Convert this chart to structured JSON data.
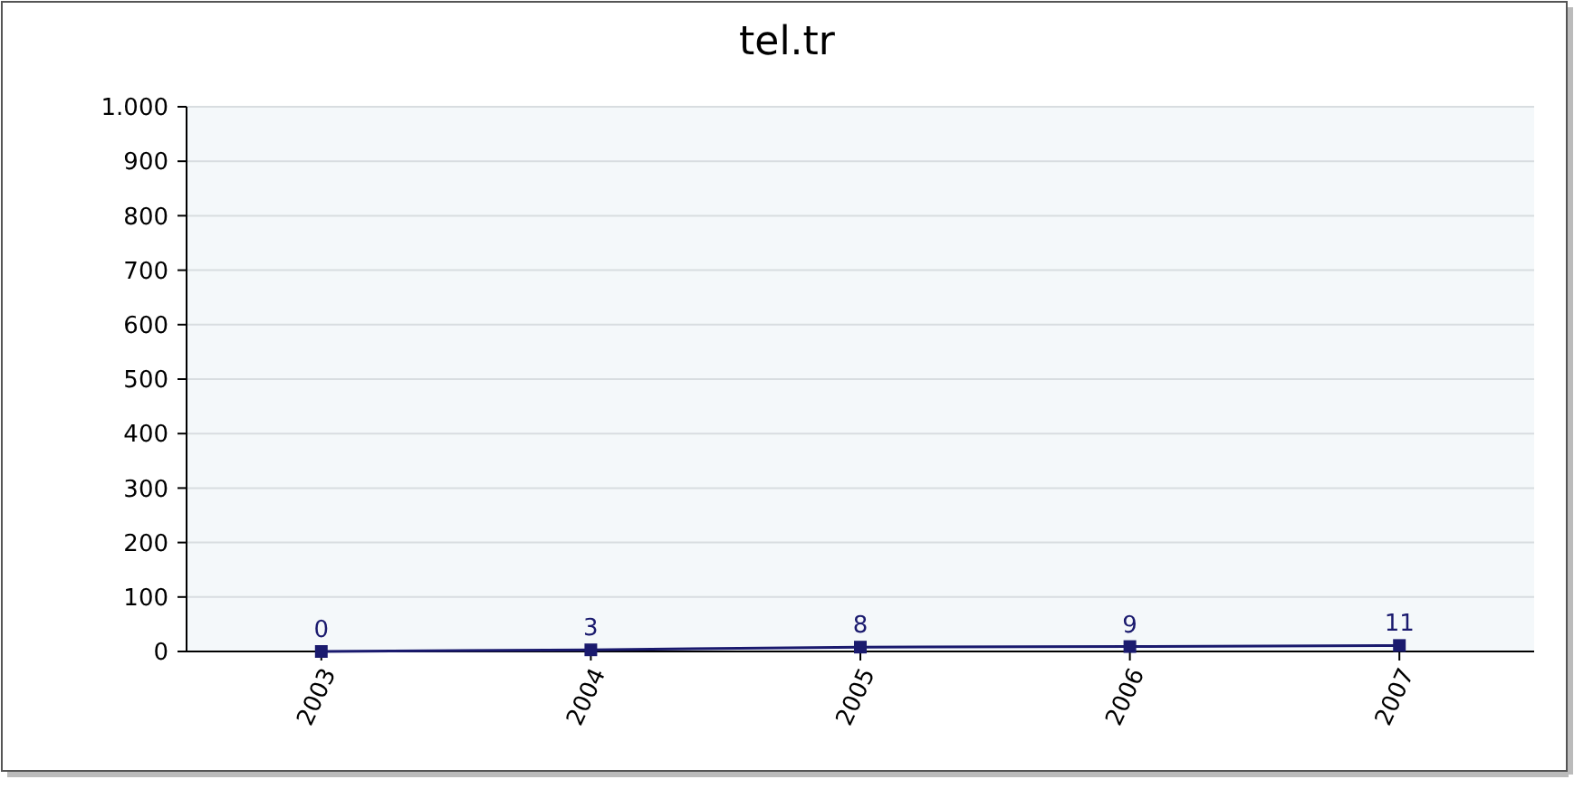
{
  "chart_data": {
    "type": "line",
    "title": "tel.tr",
    "categories": [
      "2003",
      "2004",
      "2005",
      "2006",
      "2007"
    ],
    "series": [
      {
        "color": "#1a1a6e",
        "values": [
          0,
          3,
          8,
          9,
          11
        ]
      }
    ],
    "ylim": [
      0,
      1000
    ],
    "yticks": [
      0,
      100,
      200,
      300,
      400,
      500,
      600,
      700,
      800,
      900,
      {
        "value": 1000,
        "label": "1.000"
      }
    ],
    "grid": "y",
    "marker": "square",
    "data_labels": true
  }
}
